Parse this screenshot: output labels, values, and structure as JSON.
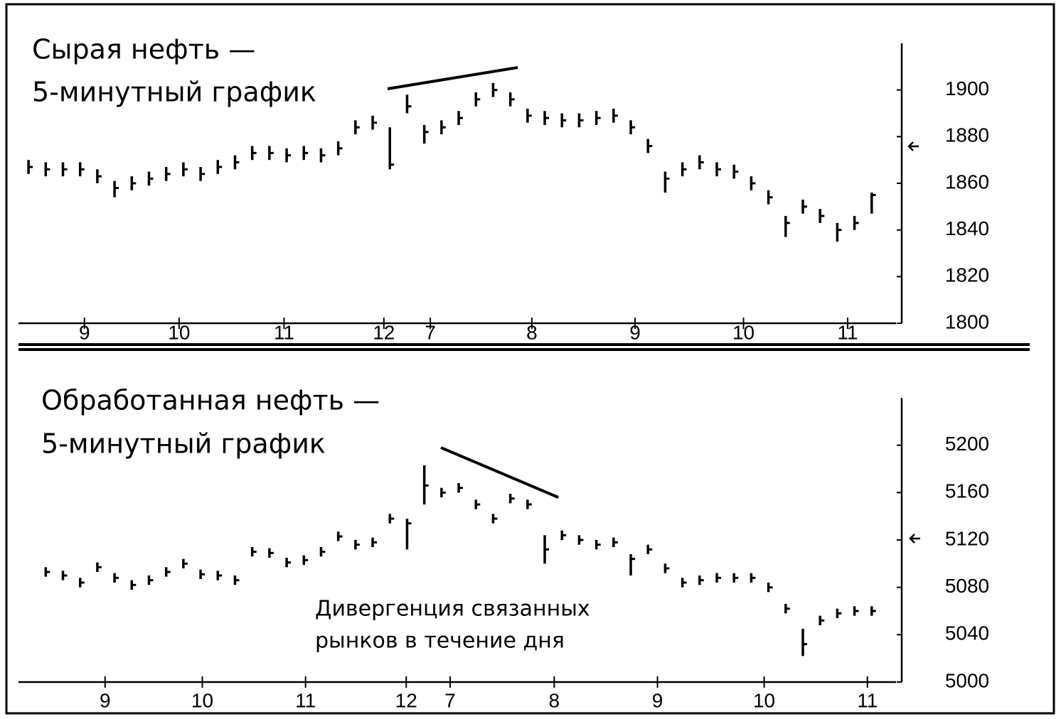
{
  "chart_data": [
    {
      "type": "ohlc",
      "title": "Сырая нефть —",
      "subtitle": "5-минутный график",
      "xlim": [
        0,
        101
      ],
      "xticks": [
        {
          "value": 7.5,
          "label": "9"
        },
        {
          "value": 18.5,
          "label": "10"
        },
        {
          "value": 30.7,
          "label": "11"
        },
        {
          "value": 42.3,
          "label": "12"
        },
        {
          "value": 47.7,
          "label": "7"
        },
        {
          "value": 59.5,
          "label": "8"
        },
        {
          "value": 71.5,
          "label": "9"
        },
        {
          "value": 84.1,
          "label": "10"
        },
        {
          "value": 96.2,
          "label": "11"
        }
      ],
      "ylim": [
        1800,
        1920
      ],
      "yticks": [
        1800,
        1820,
        1840,
        1860,
        1880,
        1900
      ],
      "color": "#000000",
      "x": [
        1,
        3,
        5,
        7,
        9,
        11,
        13,
        15,
        17,
        19,
        21,
        23,
        25,
        27,
        29,
        31,
        33,
        35,
        37,
        39,
        41,
        43,
        45,
        47,
        49,
        51,
        53,
        55,
        57,
        59,
        61,
        63,
        65,
        67,
        69,
        71,
        73,
        75,
        77,
        79,
        81,
        83,
        85,
        87,
        89,
        91,
        93,
        95,
        97,
        99
      ],
      "high": [
        1870,
        1869,
        1869,
        1869,
        1866,
        1861,
        1863,
        1865,
        1867,
        1869,
        1867,
        1870,
        1872,
        1876,
        1876,
        1875,
        1876,
        1875,
        1878,
        1887,
        1889,
        1884,
        1898,
        1885,
        1887,
        1891,
        1899,
        1903,
        1899,
        1892,
        1891,
        1890,
        1890,
        1891,
        1892,
        1887,
        1879,
        1865,
        1869,
        1872,
        1869,
        1868,
        1863,
        1857,
        1846,
        1853,
        1849,
        1843,
        1846,
        1856
      ],
      "low": [
        1864,
        1863,
        1863,
        1863,
        1860,
        1854,
        1857,
        1859,
        1861,
        1863,
        1861,
        1864,
        1866,
        1870,
        1870,
        1869,
        1870,
        1869,
        1872,
        1881,
        1883,
        1866,
        1890,
        1877,
        1881,
        1885,
        1893,
        1897,
        1893,
        1886,
        1885,
        1884,
        1884,
        1885,
        1886,
        1881,
        1873,
        1856,
        1863,
        1866,
        1863,
        1862,
        1857,
        1851,
        1837,
        1847,
        1843,
        1835,
        1840,
        1847
      ],
      "close": [
        1867,
        1866,
        1866,
        1866,
        1863,
        1858,
        1860,
        1862,
        1864,
        1866,
        1864,
        1867,
        1869,
        1873,
        1873,
        1872,
        1873,
        1872,
        1875,
        1884,
        1886,
        1868,
        1893,
        1882,
        1884,
        1888,
        1896,
        1900,
        1896,
        1889,
        1888,
        1887,
        1887,
        1888,
        1889,
        1884,
        1876,
        1862,
        1866,
        1869,
        1866,
        1865,
        1860,
        1854,
        1843,
        1850,
        1846,
        1840,
        1843,
        1855
      ]
    },
    {
      "type": "ohlc",
      "title": "Обработанная нефть —",
      "subtitle": "5-минутный график",
      "annotations": [
        "Дивергенция связанных",
        "рынков в течение дня"
      ],
      "xlim": [
        0,
        101
      ],
      "xticks": [
        {
          "value": 9.9,
          "label": "9"
        },
        {
          "value": 21.2,
          "label": "10"
        },
        {
          "value": 33.2,
          "label": "11"
        },
        {
          "value": 44.9,
          "label": "12"
        },
        {
          "value": 50.0,
          "label": "7"
        },
        {
          "value": 62.1,
          "label": "8"
        },
        {
          "value": 74.1,
          "label": "9"
        },
        {
          "value": 86.5,
          "label": "10"
        },
        {
          "value": 98.5,
          "label": "11"
        }
      ],
      "ylim": [
        5000,
        5240
      ],
      "yticks": [
        5000,
        5040,
        5080,
        5120,
        5160,
        5200
      ],
      "color": "#000000",
      "x": [
        3,
        5,
        7,
        9,
        11,
        13,
        15,
        17,
        19,
        21,
        23,
        25,
        27,
        29,
        31,
        33,
        35,
        37,
        39,
        41,
        43,
        45,
        47,
        49,
        51,
        53,
        55,
        57,
        59,
        61,
        63,
        65,
        67,
        69,
        71,
        73,
        75,
        77,
        79,
        81,
        83,
        85,
        87,
        89,
        91,
        93,
        95,
        97,
        99
      ],
      "high": [
        5097,
        5094,
        5088,
        5101,
        5092,
        5086,
        5090,
        5097,
        5104,
        5095,
        5094,
        5090,
        5114,
        5113,
        5105,
        5107,
        5114,
        5127,
        5120,
        5122,
        5142,
        5138,
        5183,
        5164,
        5168,
        5154,
        5142,
        5159,
        5154,
        5124,
        5128,
        5124,
        5120,
        5122,
        5108,
        5116,
        5100,
        5088,
        5090,
        5092,
        5092,
        5092,
        5084,
        5066,
        5045,
        5056,
        5062,
        5064,
        5064
      ],
      "low": [
        5089,
        5086,
        5080,
        5093,
        5084,
        5078,
        5082,
        5089,
        5096,
        5087,
        5086,
        5082,
        5106,
        5105,
        5097,
        5099,
        5106,
        5119,
        5112,
        5114,
        5134,
        5112,
        5150,
        5156,
        5160,
        5146,
        5134,
        5151,
        5146,
        5100,
        5120,
        5116,
        5112,
        5114,
        5090,
        5108,
        5092,
        5080,
        5082,
        5084,
        5084,
        5084,
        5076,
        5058,
        5022,
        5048,
        5054,
        5056,
        5056
      ],
      "close": [
        5093,
        5090,
        5084,
        5097,
        5088,
        5082,
        5086,
        5093,
        5100,
        5091,
        5090,
        5086,
        5110,
        5109,
        5101,
        5103,
        5110,
        5123,
        5116,
        5118,
        5138,
        5134,
        5166,
        5160,
        5164,
        5150,
        5138,
        5155,
        5150,
        5112,
        5124,
        5120,
        5116,
        5118,
        5104,
        5112,
        5096,
        5084,
        5086,
        5088,
        5088,
        5088,
        5080,
        5062,
        5032,
        5052,
        5058,
        5060,
        5060
      ]
    }
  ]
}
